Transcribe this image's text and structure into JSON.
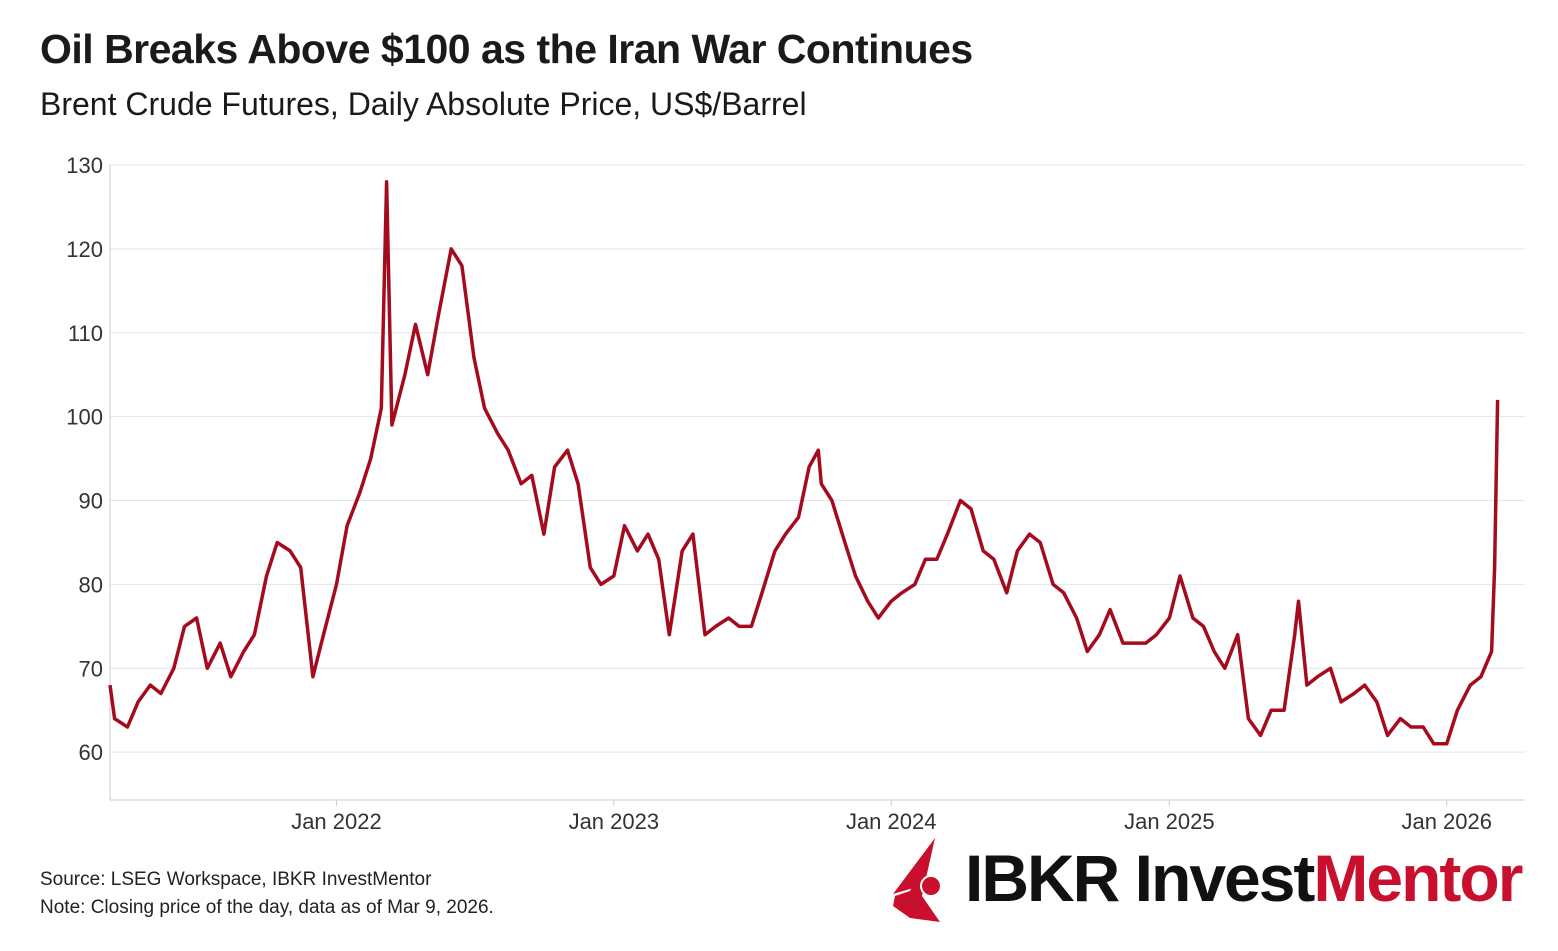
{
  "title": "Oil Breaks Above $100 as the Iran War Continues",
  "subtitle": "Brent Crude Futures, Daily Absolute Price, US$/Barrel",
  "footer": {
    "source": "Source: LSEG Workspace, IBKR InvestMentor",
    "note": "Note: Closing price of the day, data as of Mar 9, 2026."
  },
  "logo": {
    "part1": "IBKR Invest",
    "part2": "Mentor"
  },
  "colors": {
    "line": "#a50b1e",
    "brand_red": "#c8102e",
    "grid": "#e5e5e5"
  },
  "chart_data": {
    "type": "line",
    "title": "Oil Breaks Above $100 as the Iran War Continues",
    "subtitle": "Brent Crude Futures, Daily Absolute Price, US$/Barrel",
    "xlabel": "",
    "ylabel": "",
    "ylim": [
      54.3,
      130
    ],
    "xlim": [
      "2021-03-09",
      "2026-04-14"
    ],
    "grid": true,
    "yticks": [
      60,
      70,
      80,
      90,
      100,
      110,
      120,
      130
    ],
    "xticks": [
      {
        "date": "2022-01-01",
        "label": "Jan 2022"
      },
      {
        "date": "2023-01-01",
        "label": "Jan 2023"
      },
      {
        "date": "2024-01-01",
        "label": "Jan 2024"
      },
      {
        "date": "2025-01-01",
        "label": "Jan 2025"
      },
      {
        "date": "2026-01-01",
        "label": "Jan 2026"
      }
    ],
    "series": [
      {
        "points": [
          [
            "2021-03-09",
            68
          ],
          [
            "2021-03-15",
            64
          ],
          [
            "2021-04-01",
            63
          ],
          [
            "2021-04-15",
            66
          ],
          [
            "2021-05-01",
            68
          ],
          [
            "2021-05-15",
            67
          ],
          [
            "2021-06-01",
            70
          ],
          [
            "2021-06-15",
            75
          ],
          [
            "2021-07-01",
            76
          ],
          [
            "2021-07-15",
            70
          ],
          [
            "2021-08-01",
            73
          ],
          [
            "2021-08-15",
            69
          ],
          [
            "2021-09-01",
            72
          ],
          [
            "2021-09-15",
            74
          ],
          [
            "2021-10-01",
            81
          ],
          [
            "2021-10-15",
            85
          ],
          [
            "2021-11-01",
            84
          ],
          [
            "2021-11-15",
            82
          ],
          [
            "2021-12-01",
            69
          ],
          [
            "2021-12-15",
            74
          ],
          [
            "2022-01-01",
            80
          ],
          [
            "2022-01-15",
            87
          ],
          [
            "2022-02-01",
            91
          ],
          [
            "2022-02-15",
            95
          ],
          [
            "2022-03-01",
            101
          ],
          [
            "2022-03-08",
            128
          ],
          [
            "2022-03-15",
            99
          ],
          [
            "2022-04-01",
            105
          ],
          [
            "2022-04-15",
            111
          ],
          [
            "2022-05-01",
            105
          ],
          [
            "2022-05-15",
            112
          ],
          [
            "2022-06-01",
            120
          ],
          [
            "2022-06-15",
            118
          ],
          [
            "2022-07-01",
            107
          ],
          [
            "2022-07-15",
            101
          ],
          [
            "2022-08-01",
            98
          ],
          [
            "2022-08-15",
            96
          ],
          [
            "2022-09-01",
            92
          ],
          [
            "2022-09-15",
            93
          ],
          [
            "2022-10-01",
            86
          ],
          [
            "2022-10-15",
            94
          ],
          [
            "2022-11-01",
            96
          ],
          [
            "2022-11-15",
            92
          ],
          [
            "2022-12-01",
            82
          ],
          [
            "2022-12-15",
            80
          ],
          [
            "2023-01-01",
            81
          ],
          [
            "2023-01-15",
            87
          ],
          [
            "2023-02-01",
            84
          ],
          [
            "2023-02-15",
            86
          ],
          [
            "2023-03-01",
            83
          ],
          [
            "2023-03-15",
            74
          ],
          [
            "2023-04-01",
            84
          ],
          [
            "2023-04-15",
            86
          ],
          [
            "2023-05-01",
            74
          ],
          [
            "2023-05-15",
            75
          ],
          [
            "2023-06-01",
            76
          ],
          [
            "2023-06-15",
            75
          ],
          [
            "2023-07-01",
            75
          ],
          [
            "2023-07-15",
            79
          ],
          [
            "2023-08-01",
            84
          ],
          [
            "2023-08-15",
            86
          ],
          [
            "2023-09-01",
            88
          ],
          [
            "2023-09-15",
            94
          ],
          [
            "2023-09-27",
            96
          ],
          [
            "2023-10-01",
            92
          ],
          [
            "2023-10-15",
            90
          ],
          [
            "2023-11-01",
            85
          ],
          [
            "2023-11-15",
            81
          ],
          [
            "2023-12-01",
            78
          ],
          [
            "2023-12-15",
            76
          ],
          [
            "2024-01-01",
            78
          ],
          [
            "2024-01-15",
            79
          ],
          [
            "2024-02-01",
            80
          ],
          [
            "2024-02-15",
            83
          ],
          [
            "2024-03-01",
            83
          ],
          [
            "2024-03-15",
            86
          ],
          [
            "2024-04-01",
            90
          ],
          [
            "2024-04-15",
            89
          ],
          [
            "2024-05-01",
            84
          ],
          [
            "2024-05-15",
            83
          ],
          [
            "2024-06-01",
            79
          ],
          [
            "2024-06-15",
            84
          ],
          [
            "2024-07-01",
            86
          ],
          [
            "2024-07-15",
            85
          ],
          [
            "2024-08-01",
            80
          ],
          [
            "2024-08-15",
            79
          ],
          [
            "2024-09-01",
            76
          ],
          [
            "2024-09-15",
            72
          ],
          [
            "2024-10-01",
            74
          ],
          [
            "2024-10-15",
            77
          ],
          [
            "2024-11-01",
            73
          ],
          [
            "2024-11-15",
            73
          ],
          [
            "2024-12-01",
            73
          ],
          [
            "2024-12-15",
            74
          ],
          [
            "2025-01-01",
            76
          ],
          [
            "2025-01-15",
            81
          ],
          [
            "2025-02-01",
            76
          ],
          [
            "2025-02-15",
            75
          ],
          [
            "2025-03-01",
            72
          ],
          [
            "2025-03-15",
            70
          ],
          [
            "2025-04-01",
            74
          ],
          [
            "2025-04-15",
            64
          ],
          [
            "2025-05-01",
            62
          ],
          [
            "2025-05-15",
            65
          ],
          [
            "2025-06-01",
            65
          ],
          [
            "2025-06-15",
            74
          ],
          [
            "2025-06-20",
            78
          ],
          [
            "2025-07-01",
            68
          ],
          [
            "2025-07-15",
            69
          ],
          [
            "2025-08-01",
            70
          ],
          [
            "2025-08-15",
            66
          ],
          [
            "2025-09-01",
            67
          ],
          [
            "2025-09-15",
            68
          ],
          [
            "2025-10-01",
            66
          ],
          [
            "2025-10-15",
            62
          ],
          [
            "2025-11-01",
            64
          ],
          [
            "2025-11-15",
            63
          ],
          [
            "2025-12-01",
            63
          ],
          [
            "2025-12-15",
            61
          ],
          [
            "2026-01-01",
            61
          ],
          [
            "2026-01-15",
            65
          ],
          [
            "2026-02-01",
            68
          ],
          [
            "2026-02-15",
            69
          ],
          [
            "2026-03-01",
            72
          ],
          [
            "2026-03-05",
            82
          ],
          [
            "2026-03-09",
            102
          ]
        ]
      }
    ]
  }
}
